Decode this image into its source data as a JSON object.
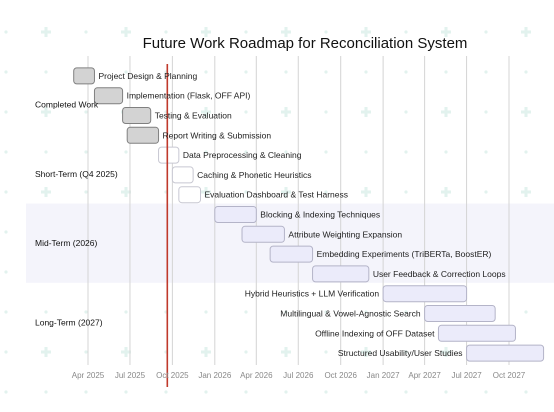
{
  "chart_data": {
    "type": "gantt",
    "title": "Future Work Roadmap for Reconciliation System",
    "x_axis": {
      "ticks": [
        "Apr 2025",
        "Jul 2025",
        "Oct 2025",
        "Jan 2026",
        "Apr 2026",
        "Jul 2026",
        "Oct 2026",
        "Jan 2027",
        "Apr 2027",
        "Jul 2027",
        "Oct 2027"
      ],
      "tick_dates": [
        "2025-04-01",
        "2025-07-01",
        "2025-10-01",
        "2026-01-01",
        "2026-04-01",
        "2026-07-01",
        "2026-10-01",
        "2027-01-01",
        "2027-04-01",
        "2027-07-01",
        "2027-10-01"
      ],
      "range": [
        "2025-03-01",
        "2027-12-25"
      ]
    },
    "today_marker": "2025-09-20",
    "grid": true,
    "sections": [
      {
        "name": "Completed Work",
        "style": "done",
        "tasks": [
          {
            "name": "Project Design & Planning",
            "start": "2025-03-01",
            "end": "2025-04-15"
          },
          {
            "name": "Implementation (Flask, OFF API)",
            "start": "2025-04-15",
            "end": "2025-06-15"
          },
          {
            "name": "Testing & Evaluation",
            "start": "2025-06-15",
            "end": "2025-08-15"
          },
          {
            "name": "Report Writing & Submission",
            "start": "2025-06-25",
            "end": "2025-09-01"
          }
        ]
      },
      {
        "name": "Short-Term (Q4 2025)",
        "style": "active",
        "tasks": [
          {
            "name": "Data Preprocessing & Cleaning",
            "start": "2025-09-01",
            "end": "2025-10-15"
          },
          {
            "name": "Caching & Phonetic Heuristics",
            "start": "2025-10-01",
            "end": "2025-11-15"
          },
          {
            "name": "Evaluation Dashboard & Test Harness",
            "start": "2025-10-15",
            "end": "2025-12-01"
          }
        ]
      },
      {
        "name": "Mid-Term (2026)",
        "style": "future",
        "tasks": [
          {
            "name": "Blocking & Indexing Techniques",
            "start": "2026-01-01",
            "end": "2026-04-01"
          },
          {
            "name": "Attribute Weighting Expansion",
            "start": "2026-03-01",
            "end": "2026-06-01"
          },
          {
            "name": "Embedding Experiments (TriBERTa, BoostER)",
            "start": "2026-05-01",
            "end": "2026-08-01"
          },
          {
            "name": "User Feedback & Correction Loops",
            "start": "2026-08-01",
            "end": "2026-12-01"
          }
        ]
      },
      {
        "name": "Long-Term (2027)",
        "style": "future",
        "tasks": [
          {
            "name": "Hybrid Heuristics + LLM Verification",
            "start": "2027-01-01",
            "end": "2027-07-01"
          },
          {
            "name": "Multilingual & Vowel-Agnostic Search",
            "start": "2027-04-01",
            "end": "2027-09-01"
          },
          {
            "name": "Offline Indexing of OFF Dataset",
            "start": "2027-05-01",
            "end": "2027-10-15"
          },
          {
            "name": "Structured Usability/User Studies",
            "start": "2027-07-01",
            "end": "2027-12-15"
          }
        ]
      }
    ],
    "colors": {
      "section_band_alt": "#f4f4fb",
      "grid_line": "#d4d4d4",
      "done_fill": "#d3d3d3",
      "done_stroke": "#808080",
      "active_fill": "#ffffff",
      "active_stroke": "#c8c8d2",
      "future_fill": "#ebebfa",
      "future_stroke": "#b4b4c8",
      "today_line": "#c0392b",
      "background_cross": "#e2f2ee"
    }
  }
}
